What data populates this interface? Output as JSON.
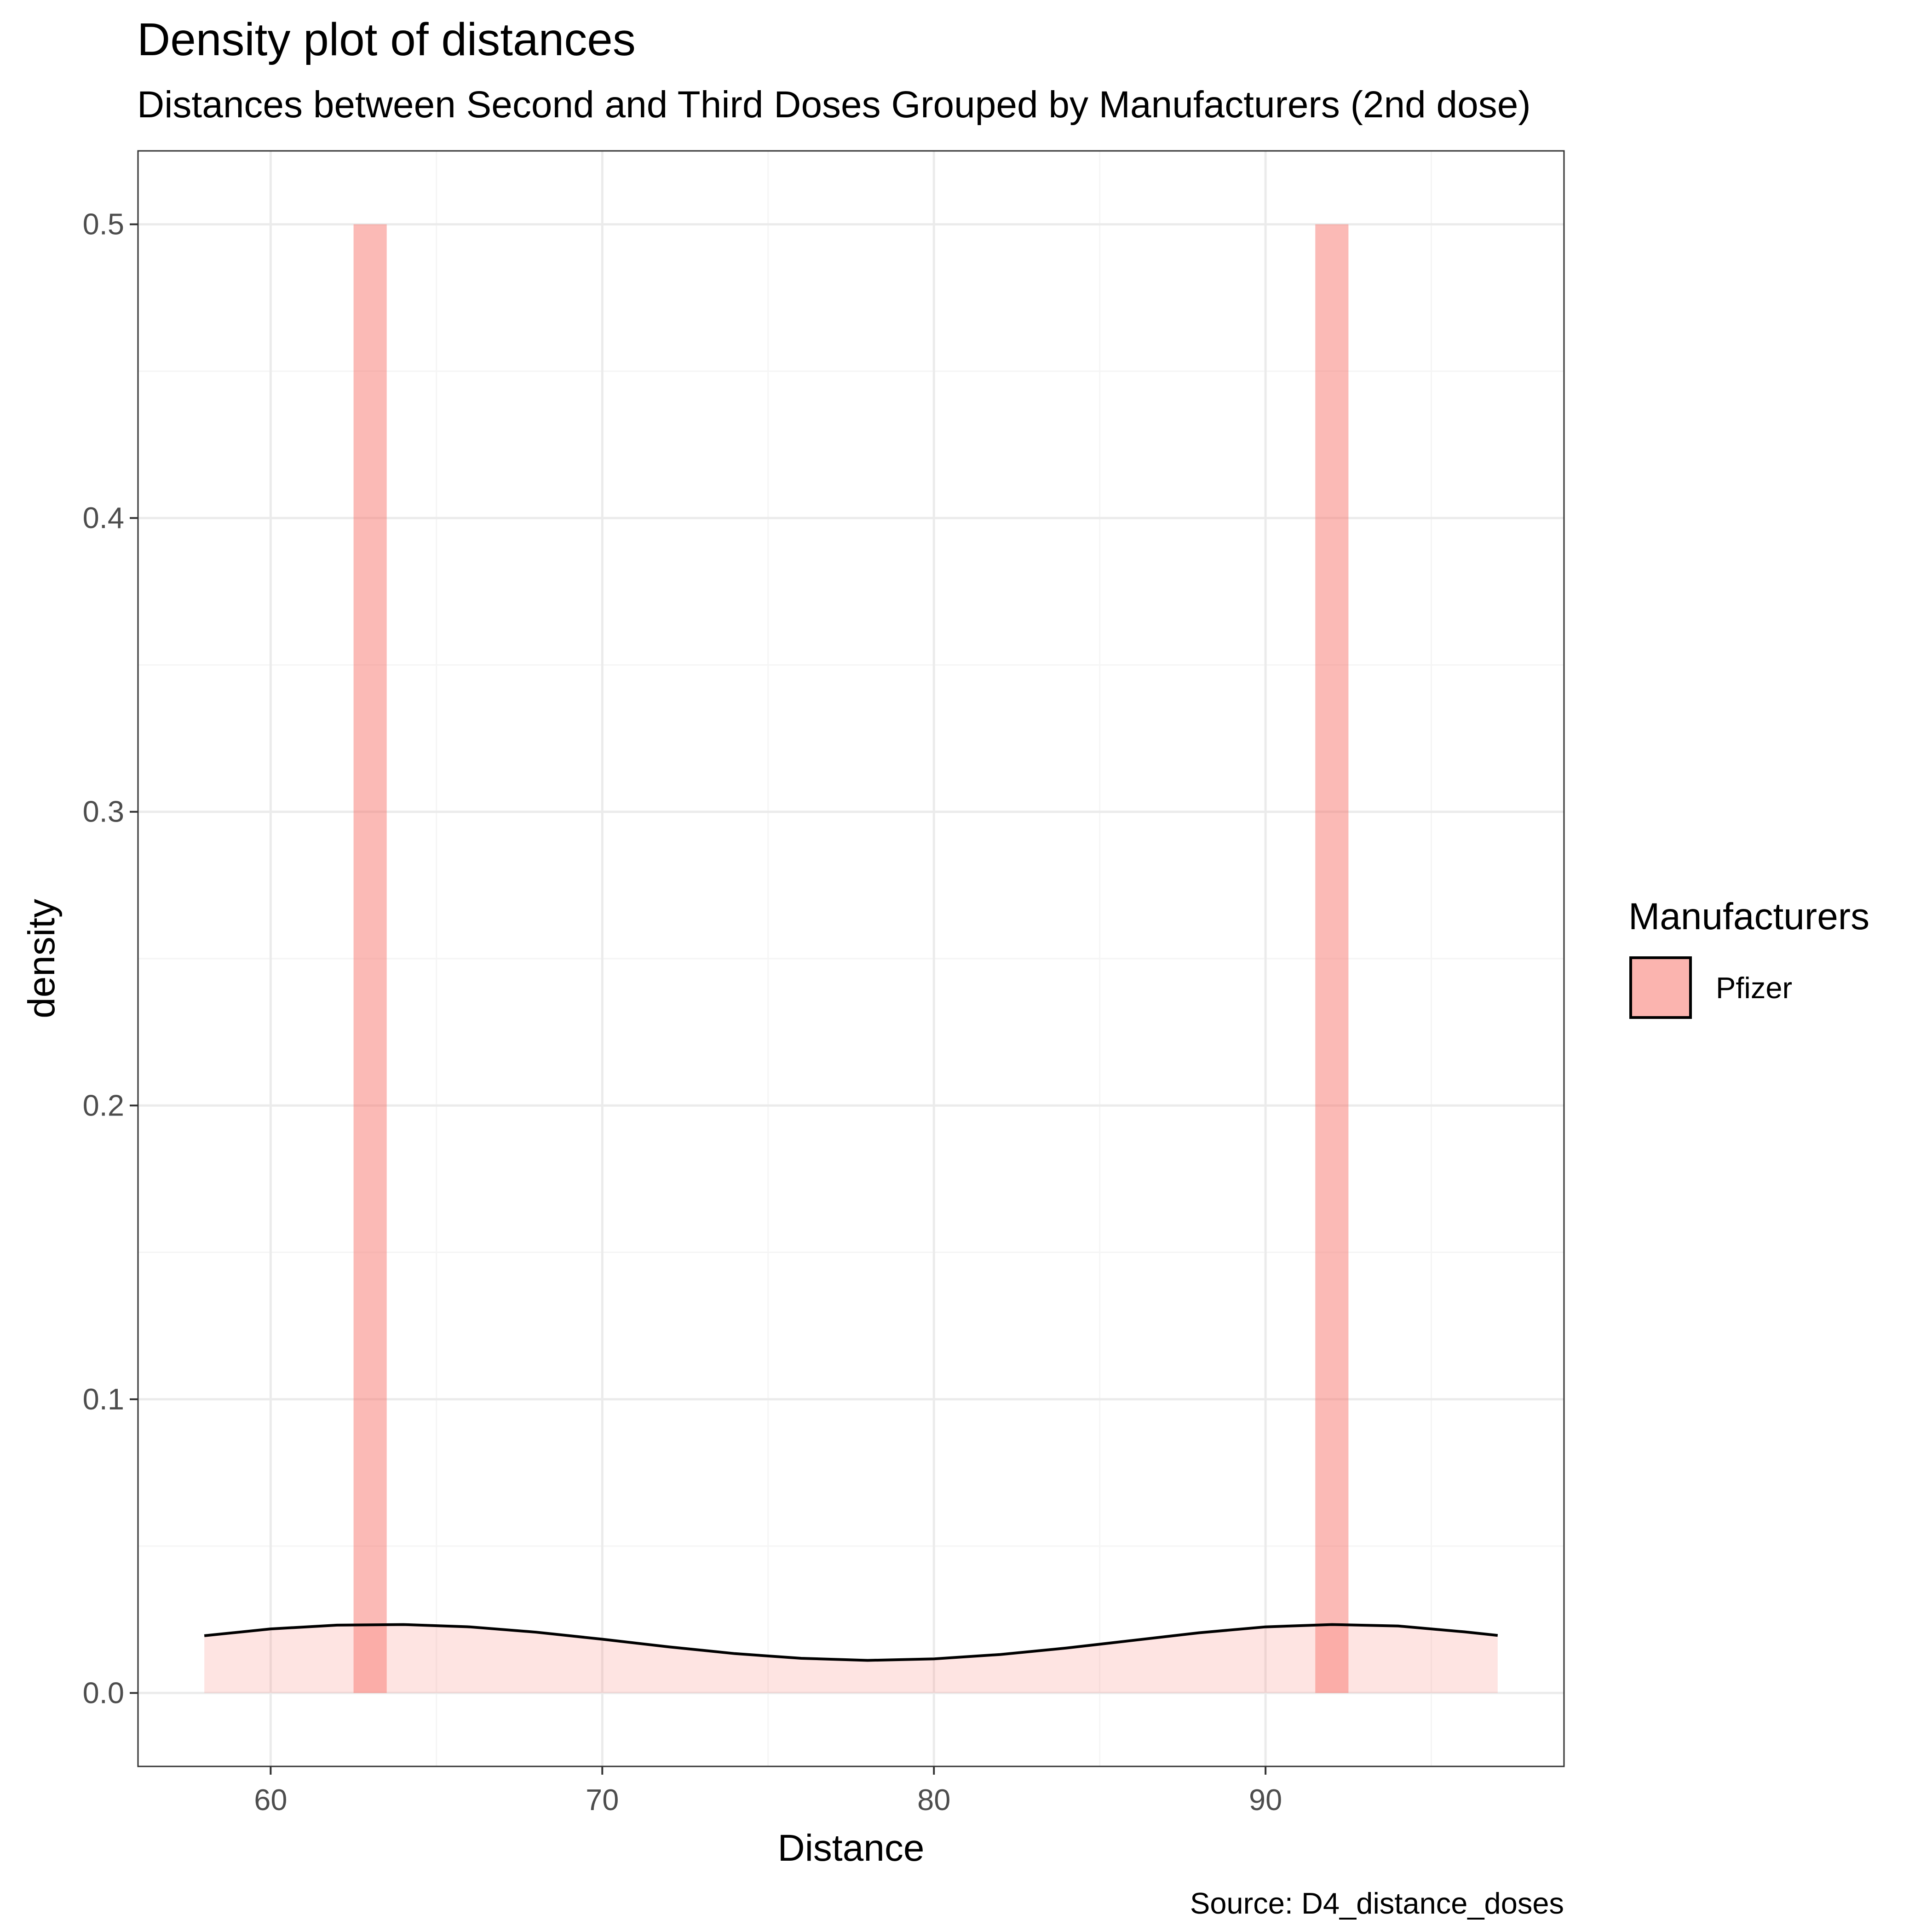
{
  "chart_data": {
    "type": "area",
    "title": "Density plot of distances",
    "subtitle": "Distances between Second and Third Doses Grouped by Manufacturers (2nd dose)",
    "xlabel": "Distance",
    "ylabel": "density",
    "caption": "Source: D4_distance_doses",
    "xlim": [
      56,
      99
    ],
    "ylim": [
      -0.025,
      0.525
    ],
    "x_ticks": [
      "60",
      "70",
      "80",
      "90"
    ],
    "y_ticks": [
      "0.0",
      "0.1",
      "0.2",
      "0.3",
      "0.4",
      "0.5"
    ],
    "grid": true,
    "legend": {
      "title": "Manufacturers",
      "position": "right",
      "entries": [
        {
          "label": "Pfizer",
          "color": "#F8766D"
        }
      ]
    },
    "histogram": {
      "bins": [
        {
          "x_start": 62.5,
          "x_end": 63.5,
          "density": 0.5
        },
        {
          "x_start": 91.5,
          "x_end": 92.5,
          "density": 0.5
        }
      ]
    },
    "density_curve": {
      "x": [
        58,
        60,
        62,
        64,
        66,
        68,
        70,
        72,
        74,
        76,
        78,
        80,
        82,
        84,
        86,
        88,
        90,
        92,
        94,
        96,
        97
      ],
      "y": [
        0.0195,
        0.0218,
        0.0231,
        0.0233,
        0.0225,
        0.0207,
        0.0183,
        0.0157,
        0.0134,
        0.0118,
        0.0111,
        0.0116,
        0.0131,
        0.0153,
        0.0179,
        0.0205,
        0.0225,
        0.0233,
        0.0228,
        0.0208,
        0.0196
      ]
    },
    "colors": {
      "fill": "#F8766D",
      "curve": "#000000",
      "panel_border": "#333333",
      "grid_major": "#ebebeb",
      "grid_minor": "#f5f5f5"
    }
  }
}
